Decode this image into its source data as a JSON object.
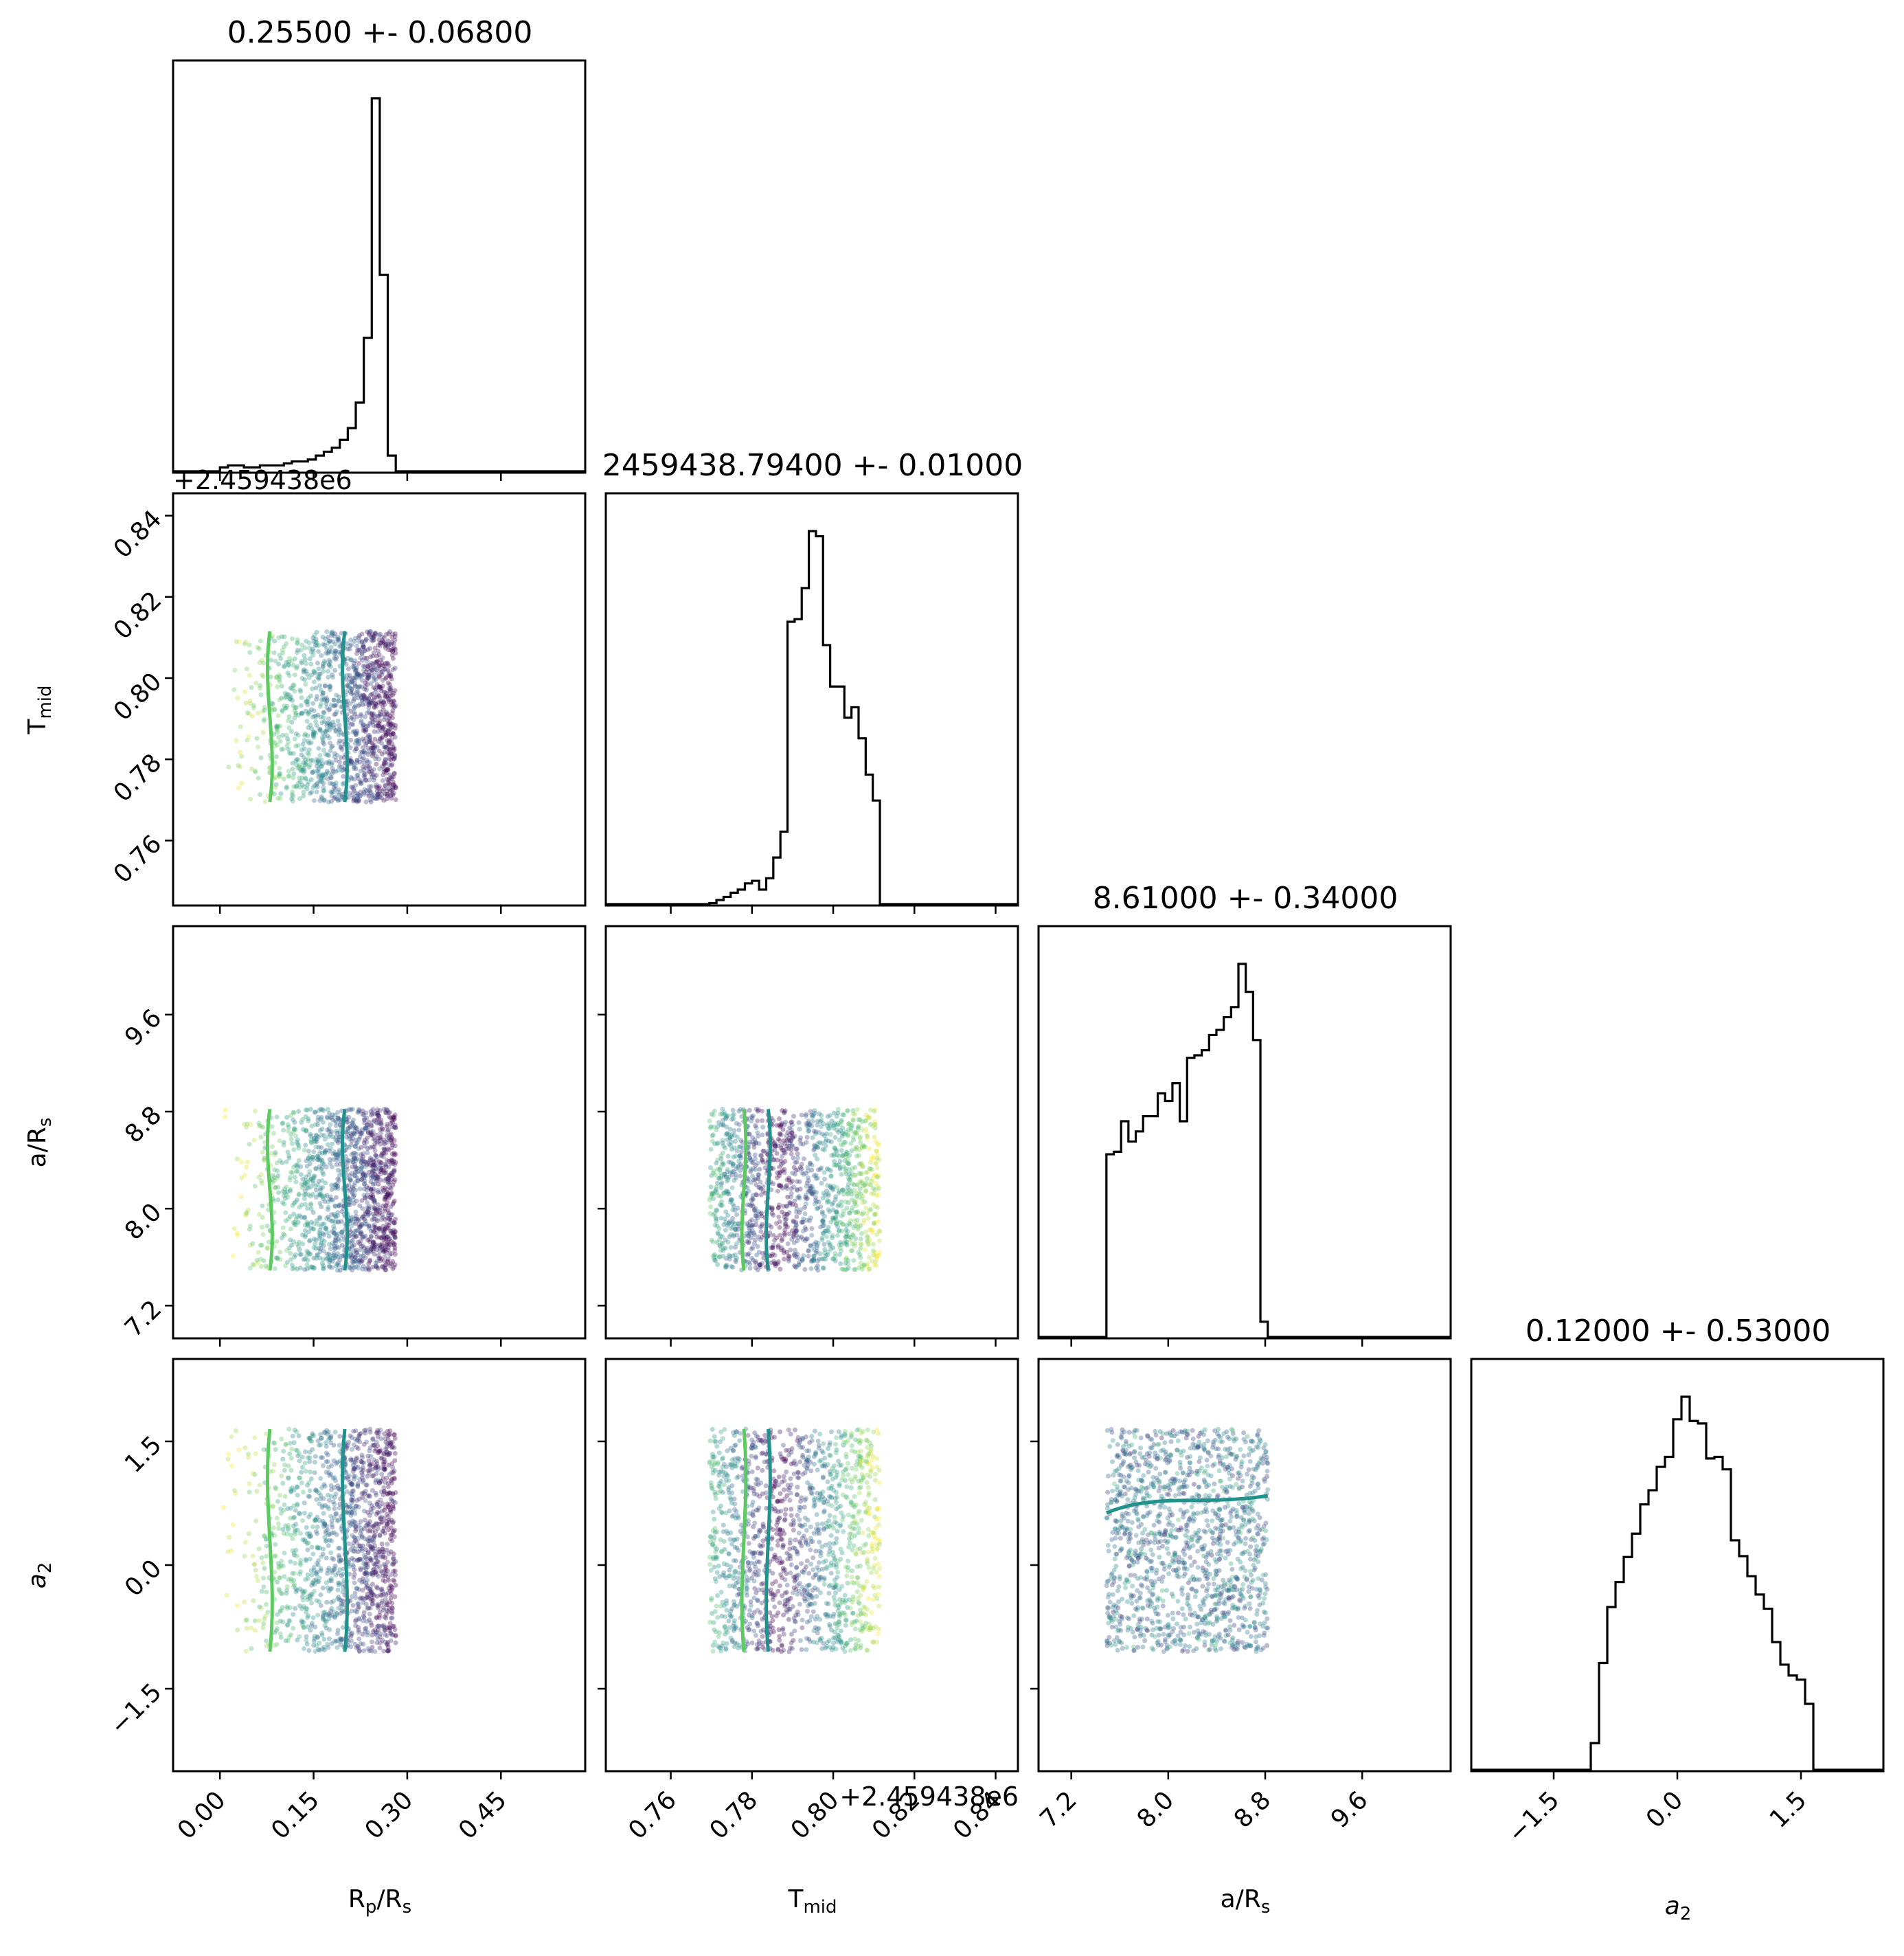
{
  "chart_data": {
    "type": "corner",
    "parameters": [
      {
        "label": "Rₚ/Rₛ",
        "label_main": "R",
        "label_sub1": "p",
        "label_mid": "/R",
        "label_sub2": "s",
        "title": "0.25500 +- 0.06800",
        "range": [
          -0.075,
          0.585
        ],
        "ticks": [
          0.0,
          0.15,
          0.3,
          0.45
        ],
        "tick_labels": [
          "0.00",
          "0.15",
          "0.30",
          "0.45"
        ],
        "hist": {
          "edges_start": 0.0,
          "bin_width": 0.0128,
          "counts": [
            2,
            3,
            3,
            2,
            2,
            3,
            3,
            3,
            4,
            5,
            5,
            6,
            8,
            10,
            12,
            16,
            22,
            35,
            68,
            190,
            100,
            8,
            0
          ]
        }
      },
      {
        "label": "T_mid",
        "label_main": "T",
        "label_sub1": "mid",
        "label_mid": "",
        "label_sub2": "",
        "title": "2459438.79400 +- 0.01000",
        "range": [
          0.744,
          0.8455
        ],
        "ticks": [
          0.76,
          0.78,
          0.8,
          0.82,
          0.84
        ],
        "tick_labels": [
          "0.76",
          "0.78",
          "0.80",
          "0.82",
          "0.84"
        ],
        "offset_text": "+2.459438e6",
        "hist": {
          "edges_start": 0.7695,
          "bin_width": 0.00175,
          "counts": [
            2,
            8,
            14,
            22,
            28,
            40,
            45,
            28,
            50,
            90,
            140,
            545,
            550,
            610,
            720,
            710,
            500,
            420,
            420,
            360,
            380,
            320,
            250,
            200,
            0
          ]
        }
      },
      {
        "label": "a/Rₛ",
        "label_main": "a/R",
        "label_sub1": "",
        "label_mid": "",
        "label_sub2": "s",
        "title": "8.61000 +- 0.34000",
        "range": [
          6.93,
          10.33
        ],
        "ticks": [
          7.2,
          8.0,
          8.8,
          9.6
        ],
        "tick_labels": [
          "7.2",
          "8.0",
          "8.8",
          "9.6"
        ],
        "hist": {
          "edges_start": 7.49,
          "bin_width": 0.0605,
          "counts": [
            360,
            365,
            425,
            385,
            405,
            435,
            435,
            480,
            465,
            500,
            425,
            550,
            555,
            565,
            595,
            605,
            630,
            650,
            735,
            680,
            585,
            30,
            0
          ]
        }
      },
      {
        "label": "a₂",
        "label_main": "a",
        "label_sub1": "",
        "label_mid": "",
        "label_sub2": "2",
        "title": "0.12000 +- 0.53000",
        "range": [
          -2.5,
          2.5
        ],
        "ticks": [
          -1.5,
          0.0,
          1.5
        ],
        "tick_labels": [
          "−1.5",
          "0.0",
          "1.5"
        ],
        "hist": {
          "edges_start": -1.05,
          "bin_width": 0.1,
          "counts": [
            32,
            128,
            195,
            225,
            255,
            283,
            318,
            335,
            363,
            375,
            420,
            447,
            418,
            415,
            373,
            375,
            360,
            275,
            256,
            232,
            210,
            193,
            153,
            126,
            113,
            108,
            79,
            0
          ]
        }
      }
    ],
    "contour_colors": [
      "#fde725",
      "#5ec962",
      "#21918c"
    ],
    "scatter_colormap": "viridis",
    "upper_panel_offset_text": "+2.459438e6"
  }
}
